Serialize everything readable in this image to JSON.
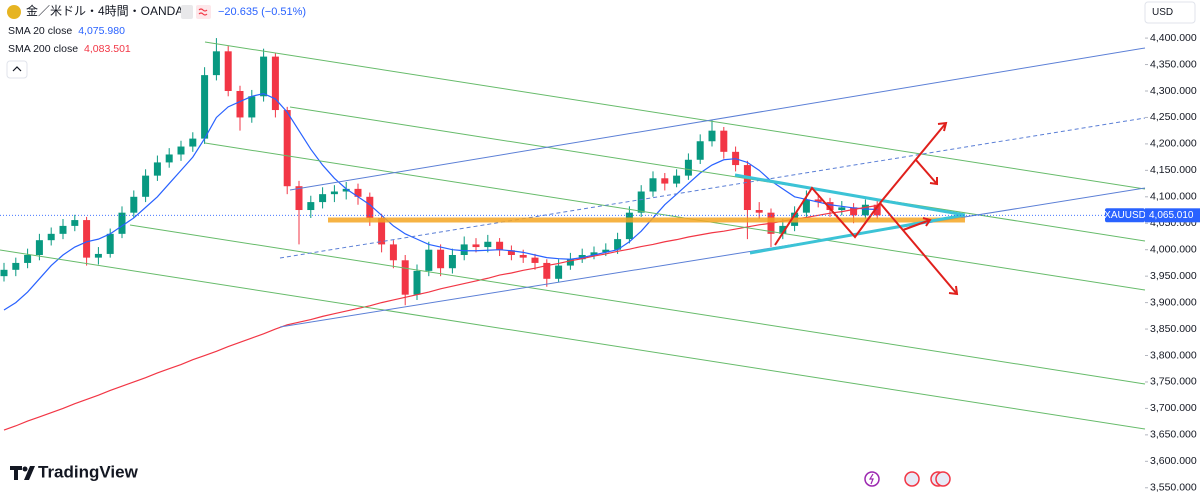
{
  "chart_data": {
    "type": "candlestick",
    "symbol": "金／米ドル・4時間・OANDA",
    "change": "−20.635 (−0.51%)",
    "currency": "USD",
    "brand": "TradingView",
    "ticker": "XAUUSD",
    "last_price": {
      "value": 4065.01,
      "label": "4,065.010"
    },
    "up_color": "#089981",
    "down_color": "#f23645",
    "ylim": [
      3542,
      4472
    ],
    "yticks": [
      {
        "value": 3550,
        "label": "3,550.000"
      },
      {
        "value": 3600,
        "label": "3,600.000"
      },
      {
        "value": 3650,
        "label": "3,650.000"
      },
      {
        "value": 3700,
        "label": "3,700.000"
      },
      {
        "value": 3750,
        "label": "3,750.000"
      },
      {
        "value": 3800,
        "label": "3,800.000"
      },
      {
        "value": 3850,
        "label": "3,850.000"
      },
      {
        "value": 3900,
        "label": "3,900.000"
      },
      {
        "value": 3950,
        "label": "3,950.000"
      },
      {
        "value": 4000,
        "label": "4,000.000"
      },
      {
        "value": 4050,
        "label": "4,050.000"
      },
      {
        "value": 4100,
        "label": "4,100.000"
      },
      {
        "value": 4150,
        "label": "4,150.000"
      },
      {
        "value": 4200,
        "label": "4,200.000"
      },
      {
        "value": 4250,
        "label": "4,250.000"
      },
      {
        "value": 4300,
        "label": "4,300.000"
      },
      {
        "value": 4350,
        "label": "4,350.000"
      },
      {
        "value": 4400,
        "label": "4,400.000"
      }
    ],
    "candles": [
      [
        3950,
        3975,
        3940,
        3962
      ],
      [
        3962,
        3985,
        3950,
        3975
      ],
      [
        3975,
        4002,
        3965,
        3990
      ],
      [
        3990,
        4030,
        3980,
        4018
      ],
      [
        4018,
        4042,
        4008,
        4030
      ],
      [
        4030,
        4058,
        4020,
        4045
      ],
      [
        4045,
        4066,
        4035,
        4056
      ],
      [
        4056,
        4062,
        3970,
        3985
      ],
      [
        3985,
        4005,
        3972,
        3992
      ],
      [
        3992,
        4040,
        3985,
        4030
      ],
      [
        4030,
        4082,
        4022,
        4070
      ],
      [
        4070,
        4112,
        4060,
        4100
      ],
      [
        4100,
        4152,
        4090,
        4140
      ],
      [
        4140,
        4178,
        4130,
        4165
      ],
      [
        4165,
        4192,
        4155,
        4180
      ],
      [
        4180,
        4206,
        4168,
        4195
      ],
      [
        4195,
        4222,
        4185,
        4210
      ],
      [
        4210,
        4345,
        4200,
        4330
      ],
      [
        4330,
        4400,
        4320,
        4375
      ],
      [
        4375,
        4385,
        4290,
        4300
      ],
      [
        4300,
        4310,
        4225,
        4250
      ],
      [
        4250,
        4302,
        4240,
        4290
      ],
      [
        4290,
        4380,
        4280,
        4365
      ],
      [
        4365,
        4372,
        4250,
        4264
      ],
      [
        4264,
        4270,
        4105,
        4120
      ],
      [
        4120,
        4130,
        4010,
        4075
      ],
      [
        4075,
        4102,
        4060,
        4090
      ],
      [
        4090,
        4118,
        4078,
        4105
      ],
      [
        4105,
        4122,
        4090,
        4110
      ],
      [
        4110,
        4128,
        4095,
        4115
      ],
      [
        4115,
        4125,
        4085,
        4100
      ],
      [
        4100,
        4108,
        4045,
        4060
      ],
      [
        4060,
        4068,
        3995,
        4010
      ],
      [
        4010,
        4018,
        3965,
        3980
      ],
      [
        3980,
        3990,
        3895,
        3915
      ],
      [
        3915,
        3972,
        3905,
        3960
      ],
      [
        3960,
        4015,
        3950,
        4000
      ],
      [
        4000,
        4010,
        3950,
        3965
      ],
      [
        3965,
        4002,
        3955,
        3990
      ],
      [
        3990,
        4025,
        3980,
        4010
      ],
      [
        4010,
        4022,
        3995,
        4005
      ],
      [
        4005,
        4028,
        3995,
        4015
      ],
      [
        4015,
        4022,
        3988,
        3999
      ],
      [
        3999,
        4008,
        3980,
        3990
      ],
      [
        3990,
        4000,
        3975,
        3985
      ],
      [
        3985,
        3992,
        3962,
        3975
      ],
      [
        3975,
        3982,
        3930,
        3945
      ],
      [
        3945,
        3982,
        3938,
        3970
      ],
      [
        3970,
        3994,
        3962,
        3982
      ],
      [
        3982,
        4002,
        3975,
        3990
      ],
      [
        3990,
        4006,
        3982,
        3995
      ],
      [
        3995,
        4012,
        3988,
        4000
      ],
      [
        4000,
        4032,
        3992,
        4020
      ],
      [
        4020,
        4082,
        4012,
        4070
      ],
      [
        4070,
        4122,
        4062,
        4110
      ],
      [
        4110,
        4148,
        4100,
        4135
      ],
      [
        4135,
        4145,
        4112,
        4125
      ],
      [
        4125,
        4152,
        4118,
        4140
      ],
      [
        4140,
        4182,
        4132,
        4170
      ],
      [
        4170,
        4218,
        4162,
        4205
      ],
      [
        4205,
        4245,
        4195,
        4225
      ],
      [
        4225,
        4232,
        4172,
        4185
      ],
      [
        4185,
        4195,
        4148,
        4160
      ],
      [
        4160,
        4168,
        4020,
        4075
      ],
      [
        4075,
        4090,
        4058,
        4070
      ],
      [
        4070,
        4078,
        4005,
        4030
      ],
      [
        4030,
        4058,
        4020,
        4045
      ],
      [
        4045,
        4082,
        4035,
        4070
      ],
      [
        4070,
        4112,
        4060,
        4095
      ],
      [
        4095,
        4105,
        4080,
        4090
      ],
      [
        4090,
        4098,
        4062,
        4075
      ],
      [
        4075,
        4092,
        4065,
        4080
      ],
      [
        4080,
        4088,
        4050,
        4065
      ],
      [
        4065,
        4095,
        4058,
        4085
      ],
      [
        4085,
        4092,
        4058,
        4065.01
      ]
    ],
    "series": [
      {
        "name": "SMA 20 close",
        "color": "#2962ff",
        "value_label": "4,075.980",
        "values": [
          3886,
          3900,
          3920,
          3945,
          3970,
          3990,
          4005,
          4015,
          4020,
          4030,
          4045,
          4060,
          4080,
          4100,
          4125,
          4150,
          4175,
          4210,
          4250,
          4270,
          4280,
          4290,
          4295,
          4285,
          4260,
          4225,
          4190,
          4160,
          4135,
          4115,
          4100,
          4085,
          4065,
          4045,
          4030,
          4020,
          4010,
          4005,
          4000,
          3998,
          3998,
          3999,
          4000,
          3998,
          3995,
          3990,
          3985,
          3983,
          3982,
          3985,
          3990,
          3995,
          4000,
          4015,
          4035,
          4060,
          4085,
          4105,
          4125,
          4145,
          4160,
          4170,
          4172,
          4165,
          4150,
          4130,
          4115,
          4100,
          4095,
          4090,
          4085,
          4082,
          4079,
          4077,
          4075.98
        ]
      },
      {
        "name": "SMA 200 close",
        "color": "#f23645",
        "value_label": "4,083.501",
        "values": [
          3659,
          3667,
          3676,
          3684,
          3692,
          3700,
          3709,
          3717,
          3725,
          3734,
          3742,
          3750,
          3758,
          3767,
          3775,
          3783,
          3792,
          3800,
          3808,
          3817,
          3825,
          3833,
          3841,
          3850,
          3858,
          3863,
          3868,
          3874,
          3879,
          3884,
          3889,
          3894,
          3900,
          3905,
          3910,
          3915,
          3920,
          3926,
          3931,
          3936,
          3941,
          3946,
          3952,
          3956,
          3961,
          3965,
          3970,
          3974,
          3979,
          3983,
          3988,
          3992,
          3997,
          4001,
          4006,
          4010,
          4015,
          4019,
          4024,
          4028,
          4032,
          4035,
          4039,
          4043,
          4047,
          4050,
          4054,
          4058,
          4061,
          4065,
          4069,
          4072,
          4076,
          4080,
          4083.501
        ]
      }
    ]
  }
}
